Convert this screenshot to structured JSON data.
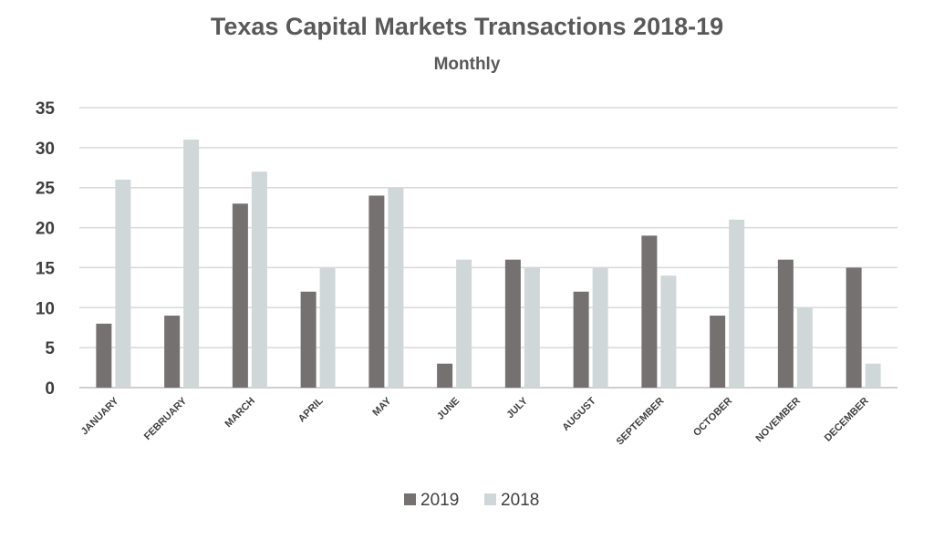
{
  "chart_data": {
    "type": "bar",
    "title": "Texas Capital Markets Transactions 2018-19",
    "subtitle": "Monthly",
    "xlabel": "",
    "ylabel": "",
    "categories": [
      "JANUARY",
      "FEBRUARY",
      "MARCH",
      "APRIL",
      "MAY",
      "JUNE",
      "JULY",
      "AUGUST",
      "SEPTEMBER",
      "OCTOBER",
      "NOVEMBER",
      "DECEMBER"
    ],
    "series": [
      {
        "name": "2019",
        "color": "#767171",
        "values": [
          8,
          9,
          23,
          12,
          24,
          3,
          16,
          12,
          19,
          9,
          16,
          15
        ]
      },
      {
        "name": "2018",
        "color": "#D0D7D9",
        "values": [
          26,
          31,
          27,
          15,
          25,
          16,
          15,
          15,
          14,
          21,
          10,
          3
        ]
      }
    ],
    "ylim": [
      0,
      35
    ],
    "yticks": [
      0,
      5,
      10,
      15,
      20,
      25,
      30,
      35
    ],
    "grid": true,
    "legend_position": "bottom"
  }
}
